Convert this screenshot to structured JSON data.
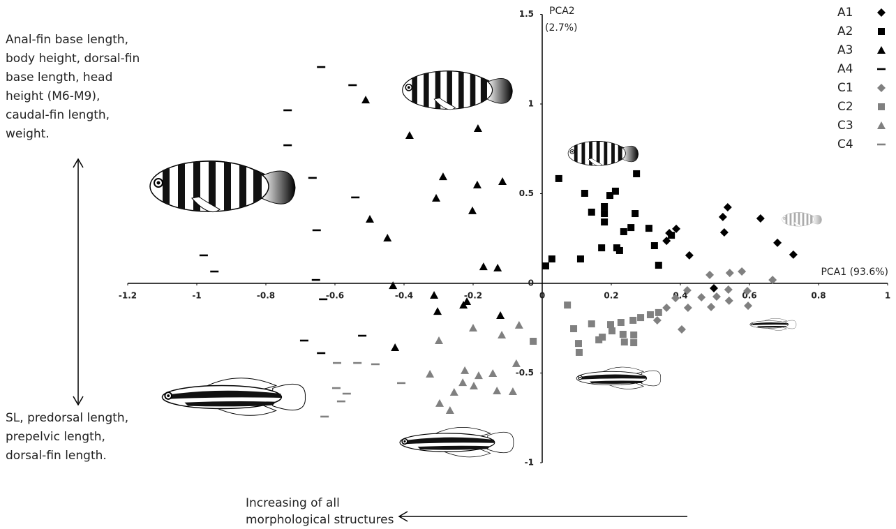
{
  "chart_data": {
    "type": "scatter",
    "xlim": [
      -1.2,
      1
    ],
    "ylim": [
      -1,
      1.5
    ],
    "xticks": [
      -1.2,
      -1,
      -0.8,
      -0.6,
      -0.4,
      -0.2,
      0,
      0.2,
      0.4,
      0.6,
      0.8,
      1
    ],
    "yticks": [
      -1,
      -0.5,
      0,
      0.5,
      1,
      1.5
    ],
    "x_label": "PCA1 (93.6%)",
    "y_label": [
      "PCA2",
      "(2.7%)"
    ],
    "legend": "upper right",
    "annotations": [
      {
        "lines": [
          "Anal-fin base length,",
          "body height, dorsal-fin",
          "base length, head",
          "height (M6-M9),",
          "caudal-fin length,",
          "weight."
        ]
      },
      {
        "lines": [
          "SL, predorsal length,",
          "prepelvic length,",
          "dorsal-fin length."
        ]
      },
      {
        "lines": [
          "Increasing of all",
          "morphological structures"
        ]
      }
    ],
    "series": [
      {
        "name": "A1",
        "color": "#000000",
        "marker": "diamond",
        "x": [
          0.537,
          0.523,
          0.632,
          0.527,
          0.388,
          0.368,
          0.36,
          0.426,
          0.681,
          0.727,
          0.497
        ],
        "values": [
          0.424,
          0.37,
          0.362,
          0.284,
          0.304,
          0.28,
          0.237,
          0.156,
          0.226,
          0.16,
          -0.027
        ]
      },
      {
        "name": "A2",
        "color": "#000000",
        "marker": "square",
        "x": [
          0.048,
          0.273,
          0.123,
          0.212,
          0.196,
          0.18,
          0.143,
          0.18,
          0.18,
          0.269,
          0.257,
          0.236,
          0.309,
          0.374,
          0.325,
          0.172,
          0.216,
          0.224,
          0.111,
          0.337,
          0.028,
          0.01
        ],
        "values": [
          0.584,
          0.611,
          0.502,
          0.514,
          0.49,
          0.428,
          0.397,
          0.389,
          0.342,
          0.389,
          0.311,
          0.288,
          0.307,
          0.268,
          0.21,
          0.198,
          0.198,
          0.183,
          0.136,
          0.101,
          0.136,
          0.097
        ]
      },
      {
        "name": "A3",
        "color": "#000000",
        "marker": "triangle",
        "x": [
          -0.511,
          -0.384,
          -0.186,
          -0.115,
          -0.287,
          -0.188,
          -0.307,
          -0.202,
          -0.499,
          -0.448,
          -0.17,
          -0.129,
          -0.432,
          -0.313,
          -0.218,
          -0.228,
          -0.303,
          -0.121,
          -0.426
        ],
        "values": [
          1.023,
          0.825,
          0.864,
          0.568,
          0.595,
          0.549,
          0.475,
          0.405,
          0.358,
          0.253,
          0.093,
          0.086,
          -0.012,
          -0.066,
          -0.101,
          -0.121,
          -0.156,
          -0.179,
          -0.358
        ]
      },
      {
        "name": "A4",
        "color": "#000000",
        "marker": "dash",
        "x": [
          -0.64,
          -0.549,
          -0.737,
          -0.737,
          -0.665,
          -0.541,
          -0.653,
          -0.98,
          -0.949,
          -0.655,
          -0.634,
          -0.689,
          -0.521,
          -0.64
        ],
        "values": [
          1.206,
          1.105,
          0.965,
          0.77,
          0.588,
          0.479,
          0.296,
          0.156,
          0.066,
          0.019,
          -0.089,
          -0.319,
          -0.292,
          -0.389
        ]
      },
      {
        "name": "C1",
        "color": "#808080",
        "marker": "diamond",
        "x": [
          0.543,
          0.578,
          0.667,
          0.485,
          0.42,
          0.386,
          0.36,
          0.422,
          0.333,
          0.539,
          0.461,
          0.505,
          0.489,
          0.541,
          0.594,
          0.596,
          0.404
        ],
        "values": [
          0.058,
          0.066,
          0.019,
          0.047,
          -0.039,
          -0.082,
          -0.136,
          -0.136,
          -0.206,
          -0.035,
          -0.078,
          -0.074,
          -0.132,
          -0.097,
          -0.043,
          -0.125,
          -0.257
        ]
      },
      {
        "name": "C2",
        "color": "#808080",
        "marker": "square",
        "x": [
          0.073,
          0.091,
          0.143,
          0.198,
          0.202,
          0.228,
          0.174,
          0.234,
          0.263,
          0.285,
          0.313,
          0.337,
          0.238,
          0.265,
          0.265,
          0.105,
          0.107,
          -0.026,
          0.164
        ],
        "values": [
          -0.121,
          -0.253,
          -0.226,
          -0.23,
          -0.265,
          -0.218,
          -0.3,
          -0.284,
          -0.206,
          -0.191,
          -0.175,
          -0.163,
          -0.327,
          -0.331,
          -0.288,
          -0.335,
          -0.385,
          -0.323,
          -0.315
        ]
      },
      {
        "name": "C3",
        "color": "#808080",
        "marker": "triangle",
        "x": [
          -0.299,
          -0.2,
          -0.067,
          -0.117,
          -0.075,
          -0.325,
          -0.224,
          -0.184,
          -0.143,
          -0.23,
          -0.198,
          -0.131,
          -0.085,
          -0.255,
          -0.267,
          -0.297
        ],
        "values": [
          -0.319,
          -0.249,
          -0.233,
          -0.288,
          -0.447,
          -0.506,
          -0.486,
          -0.514,
          -0.502,
          -0.553,
          -0.572,
          -0.599,
          -0.603,
          -0.607,
          -0.708,
          -0.669
        ]
      },
      {
        "name": "C4",
        "color": "#808080",
        "marker": "dash",
        "x": [
          -0.594,
          -0.535,
          -0.483,
          -0.408,
          -0.596,
          -0.566,
          -0.582,
          -0.63
        ],
        "values": [
          -0.444,
          -0.444,
          -0.451,
          -0.556,
          -0.584,
          -0.615,
          -0.658,
          -0.743
        ]
      }
    ]
  }
}
